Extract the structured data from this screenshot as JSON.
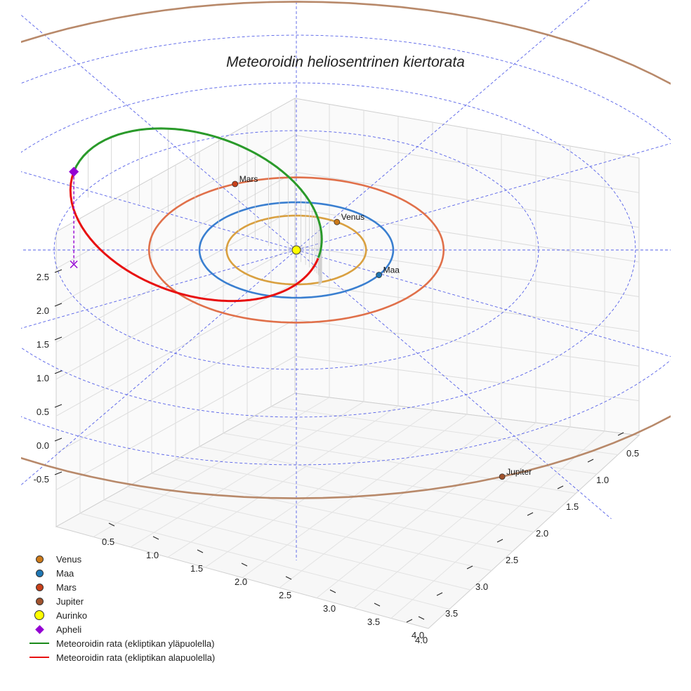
{
  "chart_data": {
    "type": "3d-line",
    "title": "Meteoroidin heliosentrinen kiertorata",
    "axes": {
      "x_ticks": [
        "0.5",
        "1.0",
        "1.5",
        "2.0",
        "2.5",
        "3.0",
        "3.5",
        "4.0"
      ],
      "y_ticks": [
        "0.5",
        "1.0",
        "1.5",
        "2.0",
        "2.5",
        "3.0",
        "3.5",
        "4.0"
      ],
      "z_ticks": [
        "2.5",
        "2.0",
        "1.5",
        "1.0",
        "0.5",
        "0.0",
        "-0.5"
      ],
      "grid": true
    },
    "orbits": [
      {
        "name": "Venus",
        "radius_au": 0.72,
        "color": "#d9a040"
      },
      {
        "name": "Maa",
        "radius_au": 1.0,
        "color": "#3a7fd0"
      },
      {
        "name": "Mars",
        "radius_au": 1.52,
        "color": "#e0704a"
      },
      {
        "name": "Jupiter",
        "radius_au": 5.2,
        "color": "#b8896a"
      }
    ],
    "reference_circles_au": [
      1.0,
      1.52,
      2.5,
      3.5,
      4.5
    ],
    "planets": [
      {
        "name": "Venus",
        "label": "Venus",
        "color": "#cc7a1a"
      },
      {
        "name": "Maa",
        "label": "Maa",
        "color": "#1f77b4"
      },
      {
        "name": "Mars",
        "label": "Mars",
        "color": "#c8401a"
      },
      {
        "name": "Jupiter",
        "label": "Jupiter",
        "color": "#a0522d"
      }
    ],
    "sun": {
      "name": "Aurinko",
      "color": "#ffff00"
    },
    "aphelion": {
      "name": "Apheli",
      "color": "#9400d3",
      "z_au": 2.35
    },
    "meteoroid_orbit": {
      "above_ecliptic": {
        "name": "Meteoroidin rata (ekliptikan yläpuolella)",
        "color": "#2a9a2a"
      },
      "below_ecliptic": {
        "name": "Meteoroidin rata (ekliptikan alapuolella)",
        "color": "#e81010"
      }
    },
    "legend": [
      {
        "label": "Venus",
        "marker": "dot",
        "color": "#cc7a1a"
      },
      {
        "label": "Maa",
        "marker": "dot",
        "color": "#1f77b4"
      },
      {
        "label": "Mars",
        "marker": "dot",
        "color": "#c8401a"
      },
      {
        "label": "Jupiter",
        "marker": "dot",
        "color": "#a0522d"
      },
      {
        "label": "Aurinko",
        "marker": "sun",
        "color": "#ffff00"
      },
      {
        "label": "Apheli",
        "marker": "diamond",
        "color": "#9400d3"
      },
      {
        "label": "Meteoroidin rata (ekliptikan yläpuolella)",
        "marker": "line",
        "color": "#1a8a1a"
      },
      {
        "label": "Meteoroidin rata (ekliptikan alapuolella)",
        "marker": "line",
        "color": "#e81010"
      }
    ]
  }
}
